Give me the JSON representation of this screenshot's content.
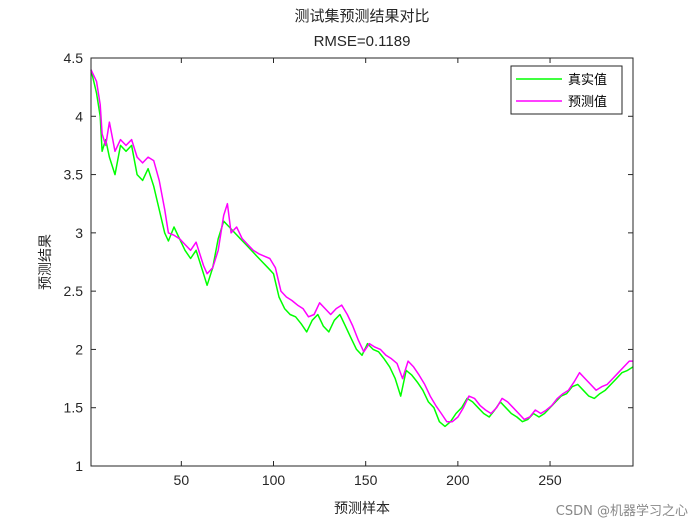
{
  "chart_data": {
    "type": "line",
    "title": "测试集预测结果对比",
    "subtitle": "RMSE=0.1189",
    "xlabel": "预测样本",
    "ylabel": "预测结果",
    "xlim": [
      1,
      295
    ],
    "ylim": [
      1,
      4.5
    ],
    "xticks": [
      50,
      100,
      150,
      200,
      250
    ],
    "yticks": [
      1,
      1.5,
      2,
      2.5,
      3,
      3.5,
      4,
      4.5
    ],
    "ytick_labels": [
      "1",
      "1.5",
      "2",
      "2.5",
      "3",
      "3.5",
      "4",
      "4.5"
    ],
    "grid": false,
    "legend_position": "top-right",
    "series": [
      {
        "name": "真实值",
        "color": "#00ff00",
        "points": [
          [
            1,
            4.4
          ],
          [
            4,
            4.2
          ],
          [
            6,
            4.0
          ],
          [
            7,
            3.7
          ],
          [
            9,
            3.8
          ],
          [
            11,
            3.65
          ],
          [
            14,
            3.5
          ],
          [
            17,
            3.75
          ],
          [
            20,
            3.7
          ],
          [
            23,
            3.75
          ],
          [
            26,
            3.5
          ],
          [
            29,
            3.45
          ],
          [
            32,
            3.55
          ],
          [
            35,
            3.4
          ],
          [
            38,
            3.2
          ],
          [
            41,
            3.0
          ],
          [
            43,
            2.93
          ],
          [
            46,
            3.05
          ],
          [
            49,
            2.95
          ],
          [
            52,
            2.85
          ],
          [
            55,
            2.78
          ],
          [
            58,
            2.85
          ],
          [
            62,
            2.65
          ],
          [
            64,
            2.55
          ],
          [
            67,
            2.7
          ],
          [
            70,
            2.95
          ],
          [
            73,
            3.1
          ],
          [
            76,
            3.05
          ],
          [
            79,
            3.0
          ],
          [
            82,
            2.95
          ],
          [
            85,
            2.9
          ],
          [
            88,
            2.85
          ],
          [
            91,
            2.8
          ],
          [
            94,
            2.75
          ],
          [
            97,
            2.7
          ],
          [
            100,
            2.65
          ],
          [
            103,
            2.45
          ],
          [
            106,
            2.35
          ],
          [
            109,
            2.3
          ],
          [
            112,
            2.28
          ],
          [
            115,
            2.22
          ],
          [
            118,
            2.15
          ],
          [
            121,
            2.25
          ],
          [
            124,
            2.3
          ],
          [
            127,
            2.2
          ],
          [
            130,
            2.15
          ],
          [
            133,
            2.25
          ],
          [
            136,
            2.3
          ],
          [
            139,
            2.2
          ],
          [
            142,
            2.1
          ],
          [
            145,
            2.0
          ],
          [
            148,
            1.95
          ],
          [
            151,
            2.05
          ],
          [
            154,
            2.0
          ],
          [
            157,
            1.98
          ],
          [
            160,
            1.92
          ],
          [
            163,
            1.85
          ],
          [
            166,
            1.75
          ],
          [
            169,
            1.6
          ],
          [
            172,
            1.82
          ],
          [
            175,
            1.78
          ],
          [
            178,
            1.72
          ],
          [
            181,
            1.65
          ],
          [
            184,
            1.55
          ],
          [
            187,
            1.5
          ],
          [
            190,
            1.38
          ],
          [
            193,
            1.34
          ],
          [
            196,
            1.38
          ],
          [
            199,
            1.45
          ],
          [
            202,
            1.5
          ],
          [
            205,
            1.58
          ],
          [
            208,
            1.55
          ],
          [
            211,
            1.5
          ],
          [
            214,
            1.45
          ],
          [
            217,
            1.42
          ],
          [
            220,
            1.48
          ],
          [
            223,
            1.55
          ],
          [
            226,
            1.5
          ],
          [
            229,
            1.45
          ],
          [
            232,
            1.42
          ],
          [
            235,
            1.38
          ],
          [
            238,
            1.4
          ],
          [
            241,
            1.45
          ],
          [
            244,
            1.42
          ],
          [
            247,
            1.45
          ],
          [
            250,
            1.5
          ],
          [
            253,
            1.55
          ],
          [
            256,
            1.6
          ],
          [
            259,
            1.62
          ],
          [
            262,
            1.68
          ],
          [
            265,
            1.7
          ],
          [
            268,
            1.65
          ],
          [
            271,
            1.6
          ],
          [
            274,
            1.58
          ],
          [
            277,
            1.62
          ],
          [
            280,
            1.65
          ],
          [
            283,
            1.7
          ],
          [
            286,
            1.75
          ],
          [
            289,
            1.8
          ],
          [
            292,
            1.82
          ],
          [
            295,
            1.85
          ]
        ]
      },
      {
        "name": "预测值",
        "color": "#ff00ff",
        "points": [
          [
            1,
            4.4
          ],
          [
            4,
            4.3
          ],
          [
            6,
            4.1
          ],
          [
            7,
            3.85
          ],
          [
            9,
            3.75
          ],
          [
            11,
            3.95
          ],
          [
            14,
            3.7
          ],
          [
            17,
            3.8
          ],
          [
            20,
            3.75
          ],
          [
            23,
            3.8
          ],
          [
            26,
            3.65
          ],
          [
            29,
            3.6
          ],
          [
            32,
            3.65
          ],
          [
            35,
            3.62
          ],
          [
            38,
            3.45
          ],
          [
            41,
            3.2
          ],
          [
            43,
            3.0
          ],
          [
            46,
            2.98
          ],
          [
            49,
            2.95
          ],
          [
            52,
            2.9
          ],
          [
            55,
            2.85
          ],
          [
            58,
            2.92
          ],
          [
            62,
            2.72
          ],
          [
            64,
            2.65
          ],
          [
            67,
            2.7
          ],
          [
            70,
            2.85
          ],
          [
            73,
            3.15
          ],
          [
            75,
            3.25
          ],
          [
            77,
            3.0
          ],
          [
            80,
            3.05
          ],
          [
            83,
            2.95
          ],
          [
            86,
            2.9
          ],
          [
            89,
            2.85
          ],
          [
            92,
            2.82
          ],
          [
            95,
            2.8
          ],
          [
            98,
            2.78
          ],
          [
            101,
            2.7
          ],
          [
            104,
            2.5
          ],
          [
            107,
            2.45
          ],
          [
            110,
            2.42
          ],
          [
            113,
            2.38
          ],
          [
            116,
            2.35
          ],
          [
            119,
            2.28
          ],
          [
            122,
            2.3
          ],
          [
            125,
            2.4
          ],
          [
            128,
            2.35
          ],
          [
            131,
            2.3
          ],
          [
            134,
            2.35
          ],
          [
            137,
            2.38
          ],
          [
            140,
            2.3
          ],
          [
            143,
            2.2
          ],
          [
            146,
            2.08
          ],
          [
            149,
            1.98
          ],
          [
            152,
            2.05
          ],
          [
            155,
            2.02
          ],
          [
            158,
            2.0
          ],
          [
            161,
            1.95
          ],
          [
            164,
            1.92
          ],
          [
            167,
            1.88
          ],
          [
            170,
            1.75
          ],
          [
            173,
            1.9
          ],
          [
            176,
            1.85
          ],
          [
            179,
            1.78
          ],
          [
            182,
            1.7
          ],
          [
            185,
            1.6
          ],
          [
            188,
            1.52
          ],
          [
            191,
            1.45
          ],
          [
            194,
            1.38
          ],
          [
            197,
            1.38
          ],
          [
            200,
            1.42
          ],
          [
            203,
            1.5
          ],
          [
            206,
            1.6
          ],
          [
            209,
            1.58
          ],
          [
            212,
            1.52
          ],
          [
            215,
            1.48
          ],
          [
            218,
            1.45
          ],
          [
            221,
            1.5
          ],
          [
            224,
            1.58
          ],
          [
            227,
            1.55
          ],
          [
            230,
            1.5
          ],
          [
            233,
            1.45
          ],
          [
            236,
            1.4
          ],
          [
            239,
            1.42
          ],
          [
            242,
            1.48
          ],
          [
            245,
            1.45
          ],
          [
            248,
            1.48
          ],
          [
            251,
            1.52
          ],
          [
            254,
            1.58
          ],
          [
            257,
            1.62
          ],
          [
            260,
            1.65
          ],
          [
            263,
            1.72
          ],
          [
            266,
            1.8
          ],
          [
            269,
            1.75
          ],
          [
            272,
            1.7
          ],
          [
            275,
            1.65
          ],
          [
            278,
            1.68
          ],
          [
            281,
            1.7
          ],
          [
            284,
            1.75
          ],
          [
            287,
            1.8
          ],
          [
            290,
            1.85
          ],
          [
            293,
            1.9
          ],
          [
            295,
            1.9
          ]
        ]
      }
    ]
  },
  "watermark": "CSDN @机器学习之心"
}
